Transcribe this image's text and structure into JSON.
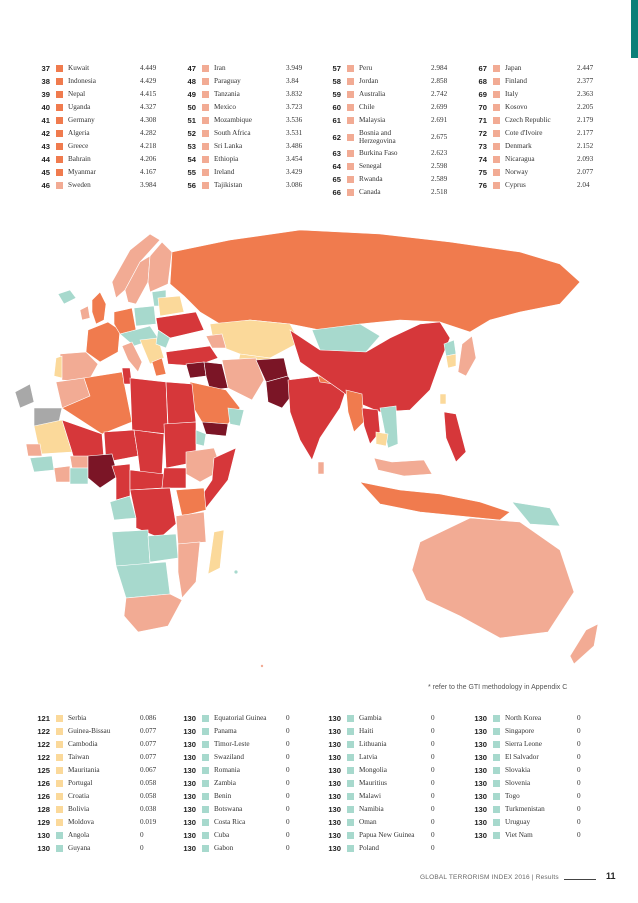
{
  "colors": {
    "teal": "#0b7f78",
    "very_high": "#7b1526",
    "high": "#d6373a",
    "medium_high": "#f07b4e",
    "medium": "#f2ab94",
    "low": "#fbd99a",
    "very_low": "#a7d9cd",
    "no_data": "#a8a8a8"
  },
  "top_table": [
    [
      {
        "rank": "37",
        "name": "Kuwait",
        "score": "4.449",
        "color": "#f07b4e"
      },
      {
        "rank": "38",
        "name": "Indonesia",
        "score": "4.429",
        "color": "#f07b4e"
      },
      {
        "rank": "39",
        "name": "Nepal",
        "score": "4.415",
        "color": "#f07b4e"
      },
      {
        "rank": "40",
        "name": "Uganda",
        "score": "4.327",
        "color": "#f07b4e"
      },
      {
        "rank": "41",
        "name": "Germany",
        "score": "4.308",
        "color": "#f07b4e"
      },
      {
        "rank": "42",
        "name": "Algeria",
        "score": "4.282",
        "color": "#f07b4e"
      },
      {
        "rank": "43",
        "name": "Greece",
        "score": "4.218",
        "color": "#f07b4e"
      },
      {
        "rank": "44",
        "name": "Bahrain",
        "score": "4.206",
        "color": "#f07b4e"
      },
      {
        "rank": "45",
        "name": "Myanmar",
        "score": "4.167",
        "color": "#f07b4e"
      },
      {
        "rank": "46",
        "name": "Sweden",
        "score": "3.984",
        "color": "#f2ab94"
      }
    ],
    [
      {
        "rank": "47",
        "name": "Iran",
        "score": "3.949",
        "color": "#f2ab94"
      },
      {
        "rank": "48",
        "name": "Paraguay",
        "score": "3.84",
        "color": "#f2ab94"
      },
      {
        "rank": "49",
        "name": "Tanzania",
        "score": "3.832",
        "color": "#f2ab94"
      },
      {
        "rank": "50",
        "name": "Mexico",
        "score": "3.723",
        "color": "#f2ab94"
      },
      {
        "rank": "51",
        "name": "Mozambique",
        "score": "3.536",
        "color": "#f2ab94"
      },
      {
        "rank": "52",
        "name": "South Africa",
        "score": "3.531",
        "color": "#f2ab94"
      },
      {
        "rank": "53",
        "name": "Sri Lanka",
        "score": "3.486",
        "color": "#f2ab94"
      },
      {
        "rank": "54",
        "name": "Ethiopia",
        "score": "3.454",
        "color": "#f2ab94"
      },
      {
        "rank": "55",
        "name": "Ireland",
        "score": "3.429",
        "color": "#f2ab94"
      },
      {
        "rank": "56",
        "name": "Tajikistan",
        "score": "3.086",
        "color": "#f2ab94"
      }
    ],
    [
      {
        "rank": "57",
        "name": "Peru",
        "score": "2.984",
        "color": "#f2ab94"
      },
      {
        "rank": "58",
        "name": "Jordan",
        "score": "2.858",
        "color": "#f2ab94"
      },
      {
        "rank": "59",
        "name": "Australia",
        "score": "2.742",
        "color": "#f2ab94"
      },
      {
        "rank": "60",
        "name": "Chile",
        "score": "2.699",
        "color": "#f2ab94"
      },
      {
        "rank": "61",
        "name": "Malaysia",
        "score": "2.691",
        "color": "#f2ab94"
      },
      {
        "rank": "62",
        "name": "Bosnia and Herzegovina",
        "score": "2.675",
        "color": "#f2ab94",
        "tall": true
      },
      {
        "rank": "63",
        "name": "Burkina Faso",
        "score": "2.623",
        "color": "#f2ab94"
      },
      {
        "rank": "64",
        "name": "Senegal",
        "score": "2.598",
        "color": "#f2ab94"
      },
      {
        "rank": "65",
        "name": "Rwanda",
        "score": "2.589",
        "color": "#f2ab94"
      },
      {
        "rank": "66",
        "name": "Canada",
        "score": "2.518",
        "color": "#f2ab94"
      }
    ],
    [
      {
        "rank": "67",
        "name": "Japan",
        "score": "2.447",
        "color": "#f2ab94"
      },
      {
        "rank": "68",
        "name": "Finland",
        "score": "2.377",
        "color": "#f2ab94"
      },
      {
        "rank": "69",
        "name": "Italy",
        "score": "2.363",
        "color": "#f2ab94"
      },
      {
        "rank": "70",
        "name": "Kosovo",
        "score": "2.205",
        "color": "#f2ab94"
      },
      {
        "rank": "71",
        "name": "Czech Republic",
        "score": "2.179",
        "color": "#f2ab94"
      },
      {
        "rank": "72",
        "name": "Cote d'Ivoire",
        "score": "2.177",
        "color": "#f2ab94"
      },
      {
        "rank": "73",
        "name": "Denmark",
        "score": "2.152",
        "color": "#f2ab94"
      },
      {
        "rank": "74",
        "name": "Nicaragua",
        "score": "2.093",
        "color": "#f2ab94"
      },
      {
        "rank": "75",
        "name": "Norway",
        "score": "2.077",
        "color": "#f2ab94"
      },
      {
        "rank": "76",
        "name": "Cyprus",
        "score": "2.04",
        "color": "#f2ab94"
      }
    ]
  ],
  "bottom_table": [
    [
      {
        "rank": "121",
        "name": "Serbia",
        "score": "0.086",
        "color": "#fbd99a"
      },
      {
        "rank": "122",
        "name": "Guinea-Bissau",
        "score": "0.077",
        "color": "#fbd99a"
      },
      {
        "rank": "122",
        "name": "Cambodia",
        "score": "0.077",
        "color": "#fbd99a"
      },
      {
        "rank": "122",
        "name": "Taiwan",
        "score": "0.077",
        "color": "#fbd99a"
      },
      {
        "rank": "125",
        "name": "Mauritania",
        "score": "0.067",
        "color": "#fbd99a"
      },
      {
        "rank": "126",
        "name": "Portugal",
        "score": "0.058",
        "color": "#fbd99a"
      },
      {
        "rank": "126",
        "name": "Croatia",
        "score": "0.058",
        "color": "#fbd99a"
      },
      {
        "rank": "128",
        "name": "Bolivia",
        "score": "0.038",
        "color": "#fbd99a"
      },
      {
        "rank": "129",
        "name": "Moldova",
        "score": "0.019",
        "color": "#fbd99a"
      },
      {
        "rank": "130",
        "name": "Angola",
        "score": "0",
        "color": "#a7d9cd"
      },
      {
        "rank": "130",
        "name": "Guyana",
        "score": "0",
        "color": "#a7d9cd"
      }
    ],
    [
      {
        "rank": "130",
        "name": "Equatorial Guinea",
        "score": "0",
        "color": "#a7d9cd"
      },
      {
        "rank": "130",
        "name": "Panama",
        "score": "0",
        "color": "#a7d9cd"
      },
      {
        "rank": "130",
        "name": "Timor-Leste",
        "score": "0",
        "color": "#a7d9cd"
      },
      {
        "rank": "130",
        "name": "Swaziland",
        "score": "0",
        "color": "#a7d9cd"
      },
      {
        "rank": "130",
        "name": "Romania",
        "score": "0",
        "color": "#a7d9cd"
      },
      {
        "rank": "130",
        "name": "Zambia",
        "score": "0",
        "color": "#a7d9cd"
      },
      {
        "rank": "130",
        "name": "Benin",
        "score": "0",
        "color": "#a7d9cd"
      },
      {
        "rank": "130",
        "name": "Botswana",
        "score": "0",
        "color": "#a7d9cd"
      },
      {
        "rank": "130",
        "name": "Costa Rica",
        "score": "0",
        "color": "#a7d9cd"
      },
      {
        "rank": "130",
        "name": "Cuba",
        "score": "0",
        "color": "#a7d9cd"
      },
      {
        "rank": "130",
        "name": "Gabon",
        "score": "0",
        "color": "#a7d9cd"
      }
    ],
    [
      {
        "rank": "130",
        "name": "Gambia",
        "score": "0",
        "color": "#a7d9cd"
      },
      {
        "rank": "130",
        "name": "Haiti",
        "score": "0",
        "color": "#a7d9cd"
      },
      {
        "rank": "130",
        "name": "Lithuania",
        "score": "0",
        "color": "#a7d9cd"
      },
      {
        "rank": "130",
        "name": "Latvia",
        "score": "0",
        "color": "#a7d9cd"
      },
      {
        "rank": "130",
        "name": "Mongolia",
        "score": "0",
        "color": "#a7d9cd"
      },
      {
        "rank": "130",
        "name": "Mauritius",
        "score": "0",
        "color": "#a7d9cd"
      },
      {
        "rank": "130",
        "name": "Malawi",
        "score": "0",
        "color": "#a7d9cd"
      },
      {
        "rank": "130",
        "name": "Namibia",
        "score": "0",
        "color": "#a7d9cd"
      },
      {
        "rank": "130",
        "name": "Oman",
        "score": "0",
        "color": "#a7d9cd"
      },
      {
        "rank": "130",
        "name": "Papua New Guinea",
        "score": "0",
        "color": "#a7d9cd"
      },
      {
        "rank": "130",
        "name": "Poland",
        "score": "0",
        "color": "#a7d9cd"
      }
    ],
    [
      {
        "rank": "130",
        "name": "North Korea",
        "score": "0",
        "color": "#a7d9cd"
      },
      {
        "rank": "130",
        "name": "Singapore",
        "score": "0",
        "color": "#a7d9cd"
      },
      {
        "rank": "130",
        "name": "Sierra Leone",
        "score": "0",
        "color": "#a7d9cd"
      },
      {
        "rank": "130",
        "name": "El Salvador",
        "score": "0",
        "color": "#a7d9cd"
      },
      {
        "rank": "130",
        "name": "Slovakia",
        "score": "0",
        "color": "#a7d9cd"
      },
      {
        "rank": "130",
        "name": "Slovenia",
        "score": "0",
        "color": "#a7d9cd"
      },
      {
        "rank": "130",
        "name": "Togo",
        "score": "0",
        "color": "#a7d9cd"
      },
      {
        "rank": "130",
        "name": "Turkmenistan",
        "score": "0",
        "color": "#a7d9cd"
      },
      {
        "rank": "130",
        "name": "Uruguay",
        "score": "0",
        "color": "#a7d9cd"
      },
      {
        "rank": "130",
        "name": "Viet Nam",
        "score": "0",
        "color": "#a7d9cd"
      }
    ]
  ],
  "note": "* refer to the GTI methodology in Appendix C",
  "footer": {
    "text": "GLOBAL TERRORISM INDEX 2016  |  Results",
    "page": "11"
  }
}
